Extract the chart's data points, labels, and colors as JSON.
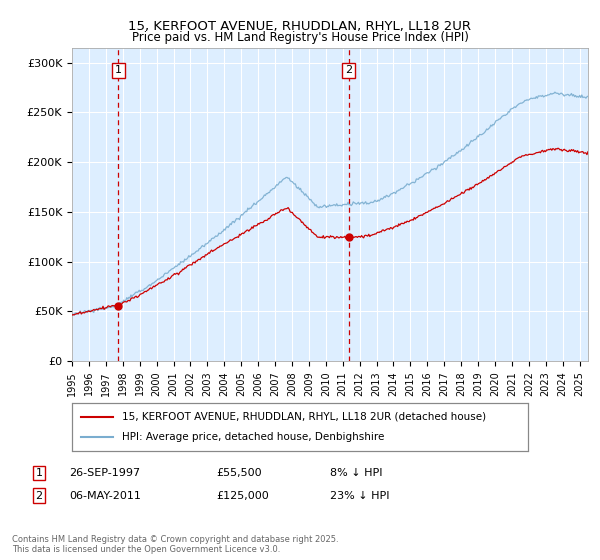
{
  "title": "15, KERFOOT AVENUE, RHUDDLAN, RHYL, LL18 2UR",
  "subtitle": "Price paid vs. HM Land Registry's House Price Index (HPI)",
  "ylabel_ticks": [
    "£0",
    "£50K",
    "£100K",
    "£150K",
    "£200K",
    "£250K",
    "£300K"
  ],
  "ylim": [
    0,
    315000
  ],
  "xlim_start": 1995.0,
  "xlim_end": 2025.5,
  "sale1": {
    "date_num": 1997.74,
    "price": 55500,
    "label": "1"
  },
  "sale2": {
    "date_num": 2011.35,
    "price": 125000,
    "label": "2"
  },
  "legend_line1": "15, KERFOOT AVENUE, RHUDDLAN, RHYL, LL18 2UR (detached house)",
  "legend_line2": "HPI: Average price, detached house, Denbighshire",
  "table_row1": [
    "1",
    "26-SEP-1997",
    "£55,500",
    "8% ↓ HPI"
  ],
  "table_row2": [
    "2",
    "06-MAY-2011",
    "£125,000",
    "23% ↓ HPI"
  ],
  "footnote": "Contains HM Land Registry data © Crown copyright and database right 2025.\nThis data is licensed under the Open Government Licence v3.0.",
  "color_red": "#cc0000",
  "color_blue": "#7aadcf",
  "color_bg": "#ddeeff",
  "color_grid": "#ffffff",
  "color_vline": "#cc0000",
  "annotation_box_color": "#cc0000"
}
